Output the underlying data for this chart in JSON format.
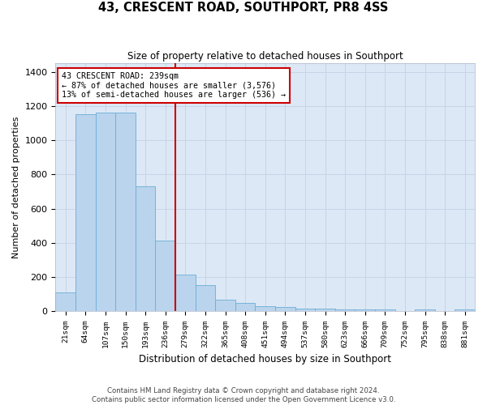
{
  "title": "43, CRESCENT ROAD, SOUTHPORT, PR8 4SS",
  "subtitle": "Size of property relative to detached houses in Southport",
  "xlabel": "Distribution of detached houses by size in Southport",
  "ylabel": "Number of detached properties",
  "categories": [
    "21sqm",
    "64sqm",
    "107sqm",
    "150sqm",
    "193sqm",
    "236sqm",
    "279sqm",
    "322sqm",
    "365sqm",
    "408sqm",
    "451sqm",
    "494sqm",
    "537sqm",
    "580sqm",
    "623sqm",
    "666sqm",
    "709sqm",
    "752sqm",
    "795sqm",
    "838sqm",
    "881sqm"
  ],
  "values": [
    110,
    1150,
    1160,
    1160,
    730,
    415,
    215,
    155,
    70,
    50,
    30,
    25,
    15,
    15,
    10,
    10,
    10,
    0,
    10,
    0,
    10
  ],
  "bar_color": "#bad4ed",
  "bar_edge_color": "#6aaed6",
  "red_line_index": 5.5,
  "annotation_line1": "43 CRESCENT ROAD: 239sqm",
  "annotation_line2": "← 87% of detached houses are smaller (3,576)",
  "annotation_line3": "13% of semi-detached houses are larger (536) →",
  "annotation_box_color": "white",
  "annotation_box_edge": "#cc0000",
  "red_line_color": "#cc0000",
  "ylim": [
    0,
    1450
  ],
  "yticks": [
    0,
    200,
    400,
    600,
    800,
    1000,
    1200,
    1400
  ],
  "grid_color": "#c8d4e8",
  "background_color": "#dce8f5",
  "footer_line1": "Contains HM Land Registry data © Crown copyright and database right 2024.",
  "footer_line2": "Contains public sector information licensed under the Open Government Licence v3.0."
}
